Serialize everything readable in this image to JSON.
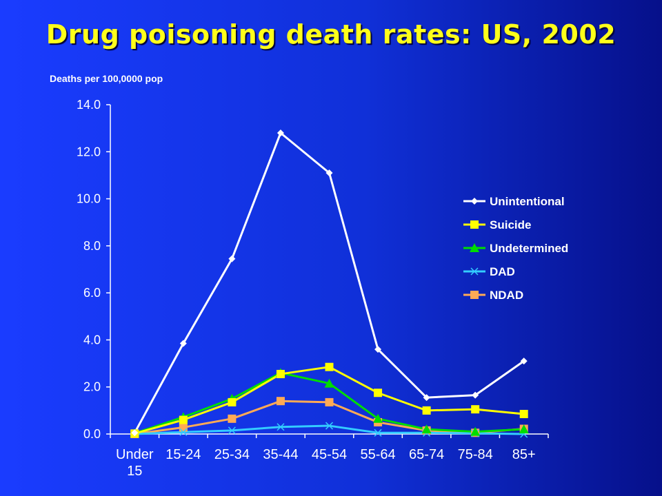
{
  "title": "Drug poisoning death rates: US, 2002",
  "chart_data": {
    "type": "line",
    "title": "Drug poisoning death rates: US, 2002",
    "ylabel": "Deaths per 100,0000 pop",
    "xlabel": "",
    "categories": [
      "Under 15",
      "15-24",
      "25-34",
      "35-44",
      "45-54",
      "55-64",
      "65-74",
      "75-84",
      "85+"
    ],
    "yticks": [
      "0.0",
      "2.0",
      "4.0",
      "6.0",
      "8.0",
      "10.0",
      "12.0",
      "14.0"
    ],
    "ylim": [
      0,
      14
    ],
    "grid": false,
    "legend_position": "right",
    "series": [
      {
        "name": "Unintentional",
        "color": "#ffffff",
        "marker": "diamond",
        "values": [
          0.05,
          3.85,
          7.45,
          12.8,
          11.1,
          3.6,
          1.55,
          1.65,
          3.1
        ]
      },
      {
        "name": "Suicide",
        "color": "#ffff00",
        "marker": "square",
        "values": [
          0.02,
          0.6,
          1.35,
          2.55,
          2.85,
          1.75,
          1.0,
          1.05,
          0.85
        ]
      },
      {
        "name": "Undetermined",
        "color": "#00dd00",
        "marker": "triangle",
        "values": [
          0.03,
          0.72,
          1.5,
          2.6,
          2.15,
          0.65,
          0.2,
          0.1,
          0.2
        ]
      },
      {
        "name": "DAD",
        "color": "#33ccff",
        "marker": "x",
        "values": [
          0.0,
          0.08,
          0.15,
          0.3,
          0.35,
          0.05,
          0.05,
          0.03,
          0.0
        ]
      },
      {
        "name": "NDAD",
        "color": "#ffaa55",
        "marker": "square",
        "values": [
          0.0,
          0.28,
          0.65,
          1.4,
          1.35,
          0.5,
          0.15,
          0.05,
          0.22
        ]
      }
    ]
  }
}
